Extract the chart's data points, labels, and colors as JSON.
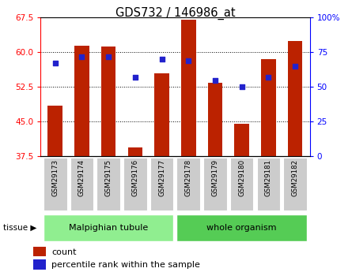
{
  "title": "GDS732 / 146986_at",
  "samples": [
    "GSM29173",
    "GSM29174",
    "GSM29175",
    "GSM29176",
    "GSM29177",
    "GSM29178",
    "GSM29179",
    "GSM29180",
    "GSM29181",
    "GSM29182"
  ],
  "counts": [
    48.5,
    61.5,
    61.3,
    39.5,
    55.5,
    67.0,
    53.5,
    44.5,
    58.5,
    62.5
  ],
  "percentiles": [
    67,
    72,
    72,
    57,
    70,
    69,
    55,
    50,
    57,
    65
  ],
  "tissue_groups": [
    {
      "label": "Malpighian tubule",
      "start": 0,
      "end": 5,
      "color": "#90EE90"
    },
    {
      "label": "whole organism",
      "start": 5,
      "end": 10,
      "color": "#55CC55"
    }
  ],
  "ylim_left": [
    37.5,
    67.5
  ],
  "ylim_right": [
    0,
    100
  ],
  "yticks_left": [
    37.5,
    45.0,
    52.5,
    60.0,
    67.5
  ],
  "yticks_right": [
    0,
    25,
    50,
    75,
    100
  ],
  "bar_color": "#BB2200",
  "dot_color": "#2222CC",
  "bar_bottom": 37.5,
  "legend_count_label": "count",
  "legend_pct_label": "percentile rank within the sample",
  "tissue_label": "tissue",
  "plot_bg_color": "#ffffff",
  "tick_label_bg": "#cccccc",
  "bar_width": 0.55
}
